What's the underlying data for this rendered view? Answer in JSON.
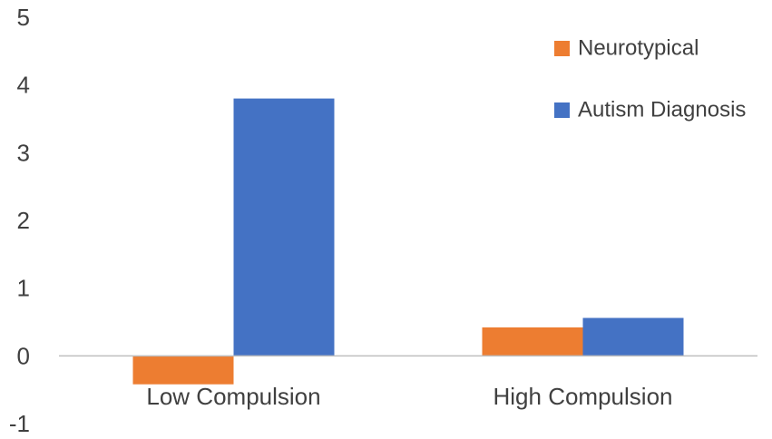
{
  "chart_data": {
    "type": "bar",
    "title": "",
    "xlabel": "",
    "ylabel": "",
    "categories": [
      "Low Compulsion",
      "High Compulsion"
    ],
    "series": [
      {
        "name": "Neurotypical",
        "color": "#ED7D31",
        "values": [
          -0.42,
          0.42
        ]
      },
      {
        "name": "Autism Diagnosis",
        "color": "#4472C4",
        "values": [
          3.8,
          0.56
        ]
      }
    ],
    "ylim": [
      -1,
      5
    ],
    "yticks": [
      "5",
      "4",
      "3",
      "2",
      "1",
      "0",
      "-1"
    ],
    "ytick_values": [
      5,
      4,
      3,
      2,
      1,
      0,
      -1
    ],
    "grid": false,
    "legend_position": "top-right"
  }
}
